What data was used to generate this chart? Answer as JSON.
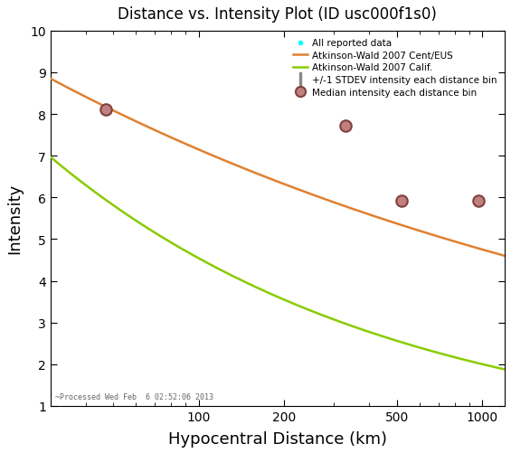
{
  "title": "Distance vs. Intensity Plot (ID usc000f1s0)",
  "xlabel": "Hypocentral Distance (km)",
  "ylabel": "Intensity",
  "xlim": [
    30,
    1200
  ],
  "ylim": [
    1,
    10
  ],
  "yticks": [
    1,
    2,
    3,
    4,
    5,
    6,
    7,
    8,
    9,
    10
  ],
  "xticks": [
    100,
    200,
    500,
    1000
  ],
  "background_color": "#ffffff",
  "footnote": "~Processed Wed Feb  6 02:52:06 2013",
  "cyan_dots": [
    [
      47,
      8.1
    ],
    [
      330,
      7.72
    ],
    [
      520,
      5.95
    ],
    [
      970,
      5.93
    ]
  ],
  "median_dots": [
    [
      47,
      8.1
    ],
    [
      330,
      7.72
    ],
    [
      520,
      5.92
    ],
    [
      970,
      5.93
    ]
  ],
  "median_dot_indices": [
    0,
    1,
    2,
    3
  ],
  "atkinson_wald_cent_color": "#E08030",
  "atkinson_wald_calif_color": "#88CC00",
  "atkinson_wald_cent_x0": 30,
  "atkinson_wald_cent_y0": 8.85,
  "atkinson_wald_cent_x1": 1000,
  "atkinson_wald_cent_y1": 4.75,
  "atkinson_wald_calif_x0": 30,
  "atkinson_wald_calif_y0": 6.97,
  "atkinson_wald_calif_x1": 1000,
  "atkinson_wald_calif_y1": 2.0,
  "legend_entries": [
    "All reported data",
    "Atkinson-Wald 2007 Cent/EUS",
    "Atkinson-Wald 2007 Calif.",
    "+/-1 STDEV intensity each distance bin",
    "Median intensity each distance bin"
  ]
}
